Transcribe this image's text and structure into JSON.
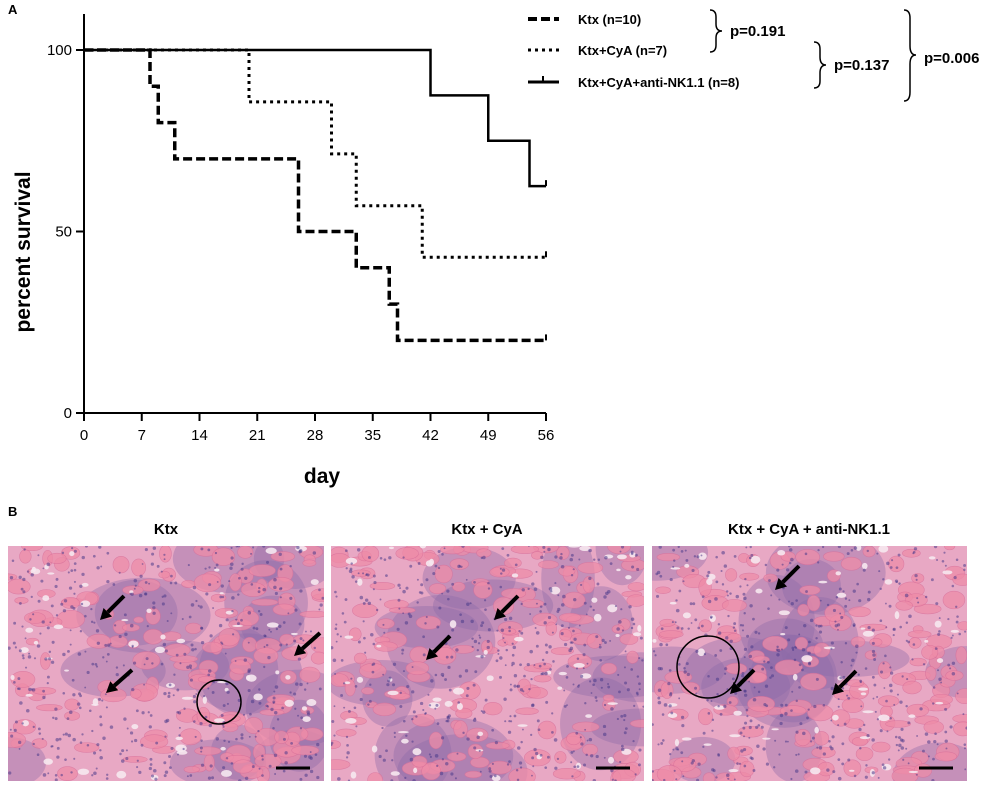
{
  "panel_a_label": "A",
  "panel_b_label": "B",
  "chart_data": {
    "type": "line",
    "step": true,
    "xlabel": "day",
    "ylabel": "percent survival",
    "xlim": [
      0,
      56
    ],
    "ylim": [
      0,
      100
    ],
    "xticks": [
      0,
      7,
      14,
      21,
      28,
      35,
      42,
      49,
      56
    ],
    "yticks": [
      0,
      50,
      100
    ],
    "grid": false,
    "legend_position": "top-right",
    "series": [
      {
        "name": "Ktx (n=10)",
        "style": "dashed",
        "x": [
          0,
          8,
          9,
          11,
          26,
          33,
          37,
          38,
          56
        ],
        "y": [
          100,
          90,
          80,
          70,
          50,
          40,
          30,
          20,
          20
        ]
      },
      {
        "name": "Ktx+CyA (n=7)",
        "style": "dotted",
        "x": [
          0,
          20,
          30,
          33,
          41,
          56
        ],
        "y": [
          100,
          85.7,
          71.4,
          57.1,
          42.9,
          42.9
        ]
      },
      {
        "name": "Ktx+CyA+anti-NK1.1 (n=8)",
        "style": "solid",
        "x": [
          0,
          42,
          49,
          54,
          56
        ],
        "y": [
          100,
          87.5,
          75,
          62.5,
          62.5
        ]
      }
    ],
    "annotations": [
      {
        "text": "p=0.191",
        "compares": [
          "Ktx (n=10)",
          "Ktx+CyA (n=7)"
        ]
      },
      {
        "text": "p=0.137",
        "compares": [
          "Ktx+CyA (n=7)",
          "Ktx+CyA+anti-NK1.1 (n=8)"
        ]
      },
      {
        "text": "p=0.006",
        "compares": [
          "Ktx (n=10)",
          "Ktx+CyA+anti-NK1.1 (n=8)"
        ]
      }
    ]
  },
  "histology": {
    "panels": [
      {
        "title": "Ktx",
        "arrows": 3,
        "circles": 1
      },
      {
        "title": "Ktx + CyA",
        "arrows": 2,
        "circles": 0
      },
      {
        "title": "Ktx + CyA + anti-NK1.1",
        "arrows": 3,
        "circles": 1
      }
    ],
    "colors": {
      "tissue_pink": "#e8a8c4",
      "tubule_pink": "#ee8ca8",
      "infiltrate_purple": "#8c6aa8",
      "lumen": "#f6e8f0"
    }
  }
}
